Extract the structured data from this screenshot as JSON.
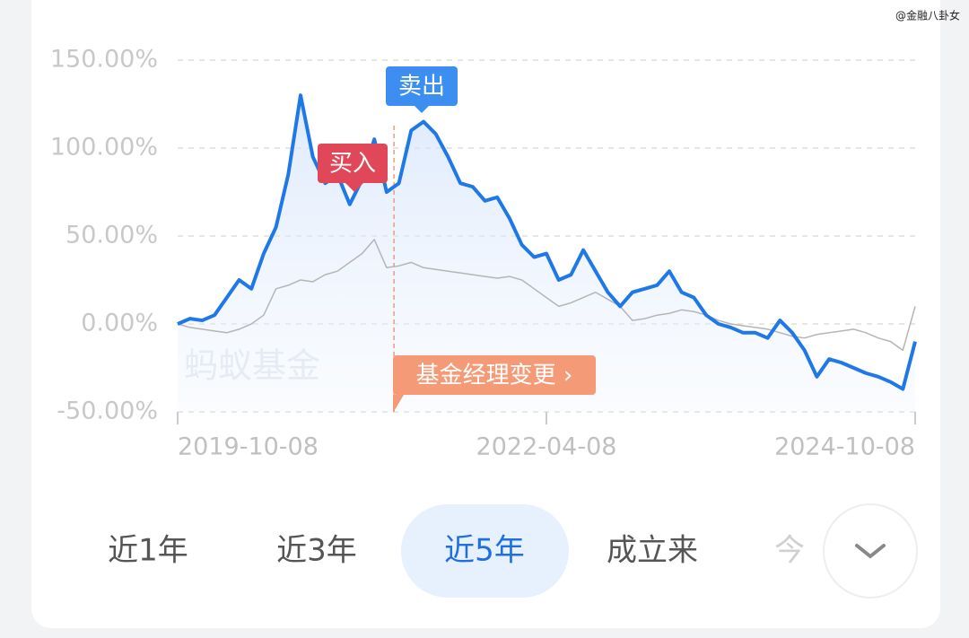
{
  "watermark_top": "@金融八卦女",
  "chart_data": {
    "type": "line",
    "categories": [
      "2019-10-08",
      null,
      null,
      null,
      null,
      null,
      null,
      null,
      null,
      null,
      null,
      null,
      null,
      null,
      null,
      null,
      null,
      null,
      null,
      null,
      null,
      null,
      null,
      null,
      null,
      null,
      null,
      null,
      null,
      null,
      "2022-04-08",
      null,
      null,
      null,
      null,
      null,
      null,
      null,
      null,
      null,
      null,
      null,
      null,
      null,
      null,
      null,
      null,
      null,
      null,
      null,
      null,
      null,
      null,
      null,
      null,
      null,
      null,
      null,
      null,
      null,
      "2024-10-08"
    ],
    "series": [
      {
        "color": "#1f78e8",
        "values": [
          0,
          3,
          2,
          5,
          15,
          25,
          20,
          40,
          55,
          85,
          130,
          95,
          80,
          85,
          68,
          82,
          105,
          75,
          80,
          110,
          115,
          108,
          95,
          80,
          78,
          70,
          72,
          60,
          45,
          38,
          40,
          25,
          28,
          42,
          30,
          18,
          10,
          18,
          20,
          22,
          30,
          18,
          15,
          5,
          0,
          -2,
          -5,
          -5,
          -8,
          2,
          -5,
          -15,
          -30,
          -20,
          -22,
          -25,
          -28,
          -30,
          -33,
          -37,
          -10
        ]
      },
      {
        "color": "#b5b5b5",
        "values": [
          0,
          -2,
          -3,
          -4,
          -5,
          -3,
          0,
          5,
          20,
          22,
          25,
          24,
          28,
          30,
          35,
          40,
          48,
          32,
          33,
          35,
          32,
          31,
          30,
          29,
          28,
          27,
          26,
          27,
          25,
          20,
          15,
          10,
          12,
          15,
          18,
          14,
          10,
          2,
          3,
          5,
          6,
          8,
          7,
          5,
          2,
          0,
          -1,
          -2,
          -3,
          -5,
          -7,
          -8,
          -6,
          -5,
          -4,
          -3,
          -5,
          -8,
          -10,
          -15,
          10
        ]
      }
    ],
    "ylim": [
      -50,
      150
    ],
    "yticks": [
      {
        "value": 150,
        "label": "150.00%"
      },
      {
        "value": 100,
        "label": "100.00%"
      },
      {
        "value": 50,
        "label": "50.00%"
      },
      {
        "value": 0,
        "label": "0.00%"
      },
      {
        "value": -50,
        "label": "-50.00%"
      }
    ],
    "grid": true,
    "watermark": "蚂蚁基金",
    "annotations": [
      "买入",
      "卖出",
      "基金经理变更 ›"
    ]
  },
  "tabs": [
    "近1年",
    "近3年",
    "近5年",
    "成立来",
    "今"
  ],
  "active_tab": 2
}
